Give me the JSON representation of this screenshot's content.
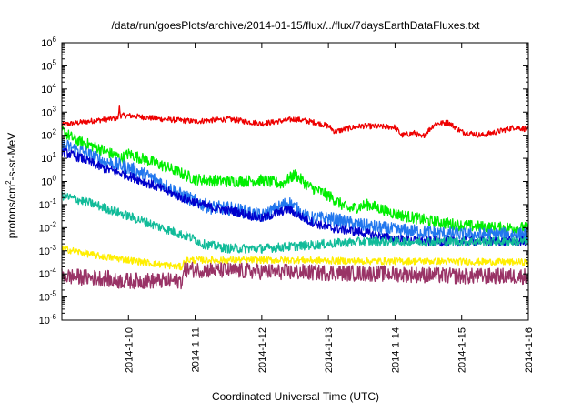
{
  "chart_data": {
    "type": "line",
    "title": "/data/run/goesPlots/archive/2014-01-15/flux/../flux/7daysEarthDataFluxes.txt",
    "xlabel": "Coordinated Universal Time (UTC)",
    "ylabel": "protons/cm²-s-sr-MeV",
    "yscale": "log",
    "xlim": [
      0,
      7.0
    ],
    "ylim_exponents": [
      -6,
      6
    ],
    "x_tick_labels": [
      {
        "x": 1,
        "label": "2014-1-10"
      },
      {
        "x": 2,
        "label": "2014-1-11"
      },
      {
        "x": 3,
        "label": "2014-1-12"
      },
      {
        "x": 4,
        "label": "2014-1-13"
      },
      {
        "x": 5,
        "label": "2014-1-14"
      },
      {
        "x": 6,
        "label": "2014-1-15"
      },
      {
        "x": 7,
        "label": "2014-1-16"
      }
    ],
    "y_tick_labels": [
      {
        "base": "10",
        "exp": "-6"
      },
      {
        "base": "10",
        "exp": "-5"
      },
      {
        "base": "10",
        "exp": "-4"
      },
      {
        "base": "10",
        "exp": "-3"
      },
      {
        "base": "10",
        "exp": "-2"
      },
      {
        "base": "10",
        "exp": "-1"
      },
      {
        "base": "10",
        "exp": "0"
      },
      {
        "base": "10",
        "exp": "1"
      },
      {
        "base": "10",
        "exp": "2"
      },
      {
        "base": "10",
        "exp": "3"
      },
      {
        "base": "10",
        "exp": "4"
      },
      {
        "base": "10",
        "exp": "5"
      },
      {
        "base": "10",
        "exp": "6"
      }
    ],
    "series": [
      {
        "name": "red",
        "color": "#ee0000",
        "noise": 0.12,
        "points": [
          [
            0,
            2.45
          ],
          [
            0.4,
            2.6
          ],
          [
            0.7,
            2.7
          ],
          [
            0.85,
            2.75
          ],
          [
            0.86,
            3.3
          ],
          [
            0.88,
            2.85
          ],
          [
            1.0,
            2.85
          ],
          [
            1.5,
            2.7
          ],
          [
            2.0,
            2.6
          ],
          [
            2.5,
            2.7
          ],
          [
            3.0,
            2.5
          ],
          [
            3.5,
            2.7
          ],
          [
            3.8,
            2.55
          ],
          [
            4.0,
            2.4
          ],
          [
            4.1,
            2.15
          ],
          [
            4.3,
            2.3
          ],
          [
            4.5,
            2.4
          ],
          [
            5.0,
            2.35
          ],
          [
            5.1,
            2.0
          ],
          [
            5.3,
            2.1
          ],
          [
            5.4,
            1.9
          ],
          [
            5.6,
            2.5
          ],
          [
            5.8,
            2.55
          ],
          [
            6.0,
            2.15
          ],
          [
            6.3,
            2.0
          ],
          [
            6.6,
            2.2
          ],
          [
            6.8,
            2.35
          ],
          [
            7.0,
            2.25
          ]
        ]
      },
      {
        "name": "green",
        "color": "#00ee00",
        "noise": 0.25,
        "points": [
          [
            0,
            2.2
          ],
          [
            0.2,
            1.8
          ],
          [
            0.5,
            1.5
          ],
          [
            0.9,
            1.0
          ],
          [
            1.0,
            1.2
          ],
          [
            1.5,
            0.7
          ],
          [
            2.0,
            0.1
          ],
          [
            2.5,
            0.0
          ],
          [
            3.0,
            0.05
          ],
          [
            3.3,
            -0.1
          ],
          [
            3.5,
            0.3
          ],
          [
            3.7,
            -0.2
          ],
          [
            4.0,
            -0.6
          ],
          [
            4.3,
            -1.2
          ],
          [
            4.6,
            -1.0
          ],
          [
            5.0,
            -1.4
          ],
          [
            5.5,
            -1.7
          ],
          [
            6.0,
            -1.9
          ],
          [
            6.5,
            -2.0
          ],
          [
            7.0,
            -2.0
          ]
        ]
      },
      {
        "name": "light-blue",
        "color": "#2277ee",
        "noise": 0.3,
        "points": [
          [
            0,
            1.6
          ],
          [
            0.3,
            1.3
          ],
          [
            0.6,
            0.9
          ],
          [
            1.0,
            0.6
          ],
          [
            1.4,
            0.1
          ],
          [
            1.8,
            -0.6
          ],
          [
            2.2,
            -1.1
          ],
          [
            2.6,
            -1.2
          ],
          [
            3.0,
            -1.5
          ],
          [
            3.4,
            -0.9
          ],
          [
            3.7,
            -1.6
          ],
          [
            4.0,
            -1.6
          ],
          [
            4.5,
            -1.9
          ],
          [
            5.0,
            -2.1
          ],
          [
            5.5,
            -2.2
          ],
          [
            6.0,
            -2.3
          ],
          [
            6.5,
            -2.3
          ],
          [
            7.0,
            -2.3
          ]
        ]
      },
      {
        "name": "dark-blue",
        "color": "#0000cc",
        "noise": 0.2,
        "points": [
          [
            0,
            1.3
          ],
          [
            0.3,
            1.0
          ],
          [
            0.6,
            0.6
          ],
          [
            1.0,
            0.25
          ],
          [
            1.4,
            -0.2
          ],
          [
            1.8,
            -0.7
          ],
          [
            2.2,
            -1.1
          ],
          [
            2.6,
            -1.3
          ],
          [
            3.0,
            -1.6
          ],
          [
            3.4,
            -1.2
          ],
          [
            3.7,
            -1.7
          ],
          [
            4.0,
            -2.0
          ],
          [
            4.5,
            -2.2
          ],
          [
            5.0,
            -2.5
          ],
          [
            5.5,
            -2.6
          ],
          [
            6.0,
            -2.6
          ],
          [
            6.5,
            -2.6
          ],
          [
            7.0,
            -2.6
          ]
        ]
      },
      {
        "name": "teal",
        "color": "#11bb99",
        "noise": 0.2,
        "points": [
          [
            0,
            -0.6
          ],
          [
            0.5,
            -1.0
          ],
          [
            1.0,
            -1.5
          ],
          [
            1.5,
            -2.0
          ],
          [
            2.0,
            -2.5
          ],
          [
            2.1,
            -2.7
          ],
          [
            2.5,
            -2.9
          ],
          [
            3.0,
            -2.9
          ],
          [
            3.5,
            -2.8
          ],
          [
            4.0,
            -2.7
          ],
          [
            4.5,
            -2.6
          ],
          [
            5.0,
            -2.6
          ],
          [
            5.5,
            -2.6
          ],
          [
            6.0,
            -2.6
          ],
          [
            6.5,
            -2.6
          ],
          [
            7.0,
            -2.6
          ]
        ]
      },
      {
        "name": "yellow",
        "color": "#ffee00",
        "noise": 0.15,
        "points": [
          [
            0,
            -2.9
          ],
          [
            0.5,
            -3.2
          ],
          [
            1.0,
            -3.4
          ],
          [
            1.5,
            -3.6
          ],
          [
            1.8,
            -3.7
          ],
          [
            1.85,
            -3.4
          ],
          [
            2.5,
            -3.4
          ],
          [
            3.5,
            -3.4
          ],
          [
            4.5,
            -3.45
          ],
          [
            5.5,
            -3.45
          ],
          [
            7.0,
            -3.5
          ]
        ]
      },
      {
        "name": "purple",
        "color": "#993366",
        "noise": 0.35,
        "points": [
          [
            0,
            -4.1
          ],
          [
            0.7,
            -4.2
          ],
          [
            0.72,
            -4.3
          ],
          [
            1.8,
            -4.3
          ],
          [
            1.85,
            -3.8
          ],
          [
            3.0,
            -3.9
          ],
          [
            4.0,
            -3.95
          ],
          [
            5.0,
            -4.0
          ],
          [
            6.0,
            -4.1
          ],
          [
            7.0,
            -4.1
          ]
        ]
      }
    ]
  }
}
